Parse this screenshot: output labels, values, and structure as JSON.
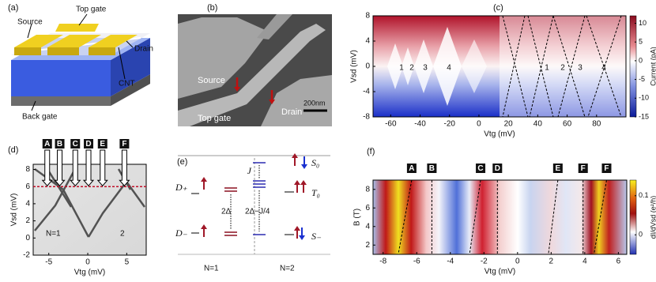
{
  "panels": {
    "a": {
      "label": "(a)",
      "texts": {
        "source": "Source",
        "top_gate": "Top gate",
        "drain": "Drain",
        "cnt": "CNT",
        "back_gate": "Back gate"
      }
    },
    "b": {
      "label": "(b)",
      "texts": {
        "source": "Source",
        "drain": "Drain",
        "top_gate": "Top gate",
        "scale": "200nm"
      }
    },
    "c": {
      "label": "(c)",
      "type": "heatmap",
      "xlabel": "Vtg (mV)",
      "ylabel": "Vsd (mV)",
      "xlim": [
        -72,
        100
      ],
      "ylim": [
        -8,
        8
      ],
      "xticks": [
        -60,
        -40,
        -20,
        0,
        20,
        40,
        60,
        80
      ],
      "yticks": [
        -8,
        -4,
        0,
        4,
        8
      ],
      "colorbar": {
        "label": "Current (pA)",
        "lim": [
          -15,
          12
        ],
        "ticks": [
          10,
          5,
          0,
          -5,
          -10,
          -15
        ]
      },
      "annotations": [
        "1",
        "2",
        "3",
        "4",
        "1",
        "2",
        "3",
        "4"
      ]
    },
    "d": {
      "label": "(d)",
      "type": "heatmap",
      "xlabel": "Vtg (mV)",
      "ylabel": "Vsd (mV)",
      "xlim": [
        -7,
        7.5
      ],
      "ylim": [
        -2,
        8.6
      ],
      "xticks": [
        -5,
        0,
        5
      ],
      "yticks": [
        -2,
        0,
        2,
        4,
        6,
        8
      ],
      "reference_line": {
        "y": 6,
        "color": "#c0102a"
      },
      "markers": [
        {
          "label": "A",
          "x": -5.2
        },
        {
          "label": "B",
          "x": -3.6
        },
        {
          "label": "C",
          "x": -1.6
        },
        {
          "label": "D",
          "x": 0.1
        },
        {
          "label": "E",
          "x": 1.9
        },
        {
          "label": "F",
          "x": 4.7
        }
      ],
      "annotations": [
        "N=1",
        "2"
      ]
    },
    "e": {
      "label": "(e)",
      "left": {
        "upper": "D₊",
        "lower": "D₋",
        "gap": "2Δ",
        "footer": "N=1"
      },
      "right": {
        "top": "S₀",
        "middle": "T₀",
        "bottom": "S₋",
        "exchange": "J",
        "gap": "2Δ−J/4",
        "footer": "N=2"
      }
    },
    "f": {
      "label": "(f)",
      "type": "heatmap",
      "xlabel": "Vtg (mV)",
      "ylabel": "B (T)",
      "xlim": [
        -8.6,
        6.5
      ],
      "ylim": [
        1,
        9
      ],
      "xticks": [
        -8,
        -6,
        -4,
        -2,
        0,
        2,
        4,
        6
      ],
      "yticks": [
        2,
        4,
        6,
        8
      ],
      "colorbar": {
        "label": "dI/dVsd (e²/h)",
        "lim": [
          -0.05,
          0.14
        ],
        "ticks": [
          0.1,
          0
        ]
      },
      "markers": [
        {
          "label": "A",
          "x": -6.3
        },
        {
          "label": "B",
          "x": -5.1
        },
        {
          "label": "C",
          "x": -2.2
        },
        {
          "label": "D",
          "x": -1.2
        },
        {
          "label": "E",
          "x": 2.4
        },
        {
          "label": "F",
          "x": 3.9
        },
        {
          "label": "F",
          "x": 5.3
        }
      ]
    }
  }
}
